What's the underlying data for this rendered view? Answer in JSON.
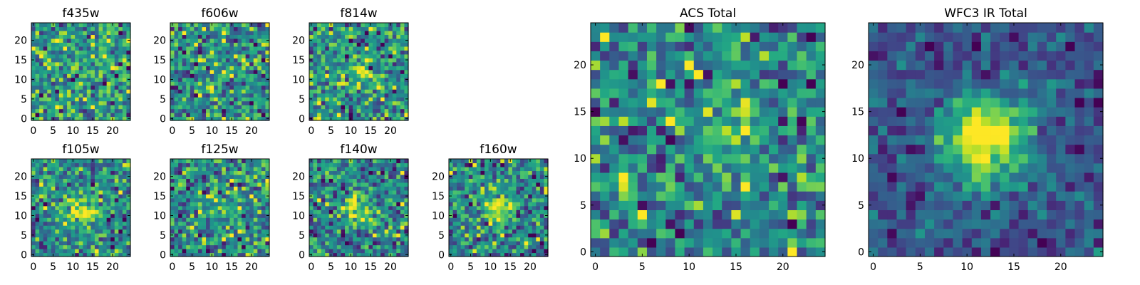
{
  "chart_data": [
    {
      "type": "heatmap",
      "title": "f435w",
      "colormap": "viridis",
      "grid_size": [
        25,
        25
      ],
      "xlim": [
        -0.5,
        24.5
      ],
      "ylim": [
        -0.5,
        24.5
      ],
      "xticks": [
        0,
        5,
        10,
        15,
        20
      ],
      "yticks": [
        0,
        5,
        10,
        15,
        20
      ],
      "xtick_labels": [
        "0",
        "5",
        "10",
        "15",
        "20"
      ],
      "ytick_labels": [
        "0",
        "5",
        "10",
        "15",
        "20"
      ],
      "source": {
        "center": [
          12,
          12
        ],
        "width": 3.0,
        "amplitude": 0.0
      },
      "noise_level": 1.0,
      "seed": 435
    },
    {
      "type": "heatmap",
      "title": "f606w",
      "colormap": "viridis",
      "grid_size": [
        25,
        25
      ],
      "xlim": [
        -0.5,
        24.5
      ],
      "ylim": [
        -0.5,
        24.5
      ],
      "xticks": [
        0,
        5,
        10,
        15,
        20
      ],
      "yticks": [
        0,
        5,
        10,
        15,
        20
      ],
      "xtick_labels": [
        "0",
        "5",
        "10",
        "15",
        "20"
      ],
      "ytick_labels": [
        "0",
        "5",
        "10",
        "15",
        "20"
      ],
      "source": {
        "center": [
          12,
          12
        ],
        "width": 3.0,
        "amplitude": 0.1
      },
      "noise_level": 1.0,
      "seed": 606
    },
    {
      "type": "heatmap",
      "title": "f814w",
      "colormap": "viridis",
      "grid_size": [
        25,
        25
      ],
      "xlim": [
        -0.5,
        24.5
      ],
      "ylim": [
        -0.5,
        24.5
      ],
      "xticks": [
        0,
        5,
        10,
        15,
        20
      ],
      "yticks": [
        0,
        5,
        10,
        15,
        20
      ],
      "xtick_labels": [
        "0",
        "5",
        "10",
        "15",
        "20"
      ],
      "ytick_labels": [
        "0",
        "5",
        "10",
        "15",
        "20"
      ],
      "source": {
        "center": [
          12,
          12
        ],
        "width": 3.0,
        "amplitude": 0.55
      },
      "noise_level": 1.0,
      "seed": 814
    },
    {
      "type": "heatmap",
      "title": "f105w",
      "colormap": "viridis",
      "grid_size": [
        25,
        25
      ],
      "xlim": [
        -0.5,
        24.5
      ],
      "ylim": [
        -0.5,
        24.5
      ],
      "xticks": [
        0,
        5,
        10,
        15,
        20
      ],
      "yticks": [
        0,
        5,
        10,
        15,
        20
      ],
      "xtick_labels": [
        "0",
        "5",
        "10",
        "15",
        "20"
      ],
      "ytick_labels": [
        "0",
        "5",
        "10",
        "15",
        "20"
      ],
      "source": {
        "center": [
          12,
          11
        ],
        "width": 3.0,
        "amplitude": 0.9
      },
      "noise_level": 0.9,
      "seed": 105
    },
    {
      "type": "heatmap",
      "title": "f125w",
      "colormap": "viridis",
      "grid_size": [
        25,
        25
      ],
      "xlim": [
        -0.5,
        24.5
      ],
      "ylim": [
        -0.5,
        24.5
      ],
      "xticks": [
        0,
        5,
        10,
        15,
        20
      ],
      "yticks": [
        0,
        5,
        10,
        15,
        20
      ],
      "xtick_labels": [
        "0",
        "5",
        "10",
        "15",
        "20"
      ],
      "ytick_labels": [
        "0",
        "5",
        "10",
        "15",
        "20"
      ],
      "source": {
        "center": [
          12,
          11
        ],
        "width": 3.0,
        "amplitude": 0.5
      },
      "noise_level": 1.0,
      "seed": 125
    },
    {
      "type": "heatmap",
      "title": "f140w",
      "colormap": "viridis",
      "grid_size": [
        25,
        25
      ],
      "xlim": [
        -0.5,
        24.5
      ],
      "ylim": [
        -0.5,
        24.5
      ],
      "xticks": [
        0,
        5,
        10,
        15,
        20
      ],
      "yticks": [
        0,
        5,
        10,
        15,
        20
      ],
      "xtick_labels": [
        "0",
        "5",
        "10",
        "15",
        "20"
      ],
      "ytick_labels": [
        "0",
        "5",
        "10",
        "15",
        "20"
      ],
      "source": {
        "center": [
          12,
          12
        ],
        "width": 3.0,
        "amplitude": 0.9
      },
      "noise_level": 0.9,
      "seed": 140
    },
    {
      "type": "heatmap",
      "title": "f160w",
      "colormap": "viridis",
      "grid_size": [
        25,
        25
      ],
      "xlim": [
        -0.5,
        24.5
      ],
      "ylim": [
        -0.5,
        24.5
      ],
      "xticks": [
        0,
        5,
        10,
        15,
        20
      ],
      "yticks": [
        0,
        5,
        10,
        15,
        20
      ],
      "xtick_labels": [
        "0",
        "5",
        "10",
        "15",
        "20"
      ],
      "ytick_labels": [
        "0",
        "5",
        "10",
        "15",
        "20"
      ],
      "source": {
        "center": [
          12,
          12
        ],
        "width": 3.0,
        "amplitude": 1.1
      },
      "noise_level": 0.9,
      "seed": 160
    },
    {
      "type": "heatmap",
      "title": "ACS Total",
      "colormap": "viridis",
      "grid_size": [
        25,
        25
      ],
      "xlim": [
        -0.5,
        24.5
      ],
      "ylim": [
        -0.5,
        24.5
      ],
      "xticks": [
        0,
        5,
        10,
        15,
        20
      ],
      "yticks": [
        0,
        5,
        10,
        15,
        20
      ],
      "xtick_labels": [
        "0",
        "5",
        "10",
        "15",
        "20"
      ],
      "ytick_labels": [
        "0",
        "5",
        "10",
        "15",
        "20"
      ],
      "source": {
        "center": [
          12,
          12
        ],
        "width": 3.0,
        "amplitude": 0.35
      },
      "noise_level": 1.0,
      "seed": 1001
    },
    {
      "type": "heatmap",
      "title": "WFC3 IR Total",
      "colormap": "viridis",
      "grid_size": [
        25,
        25
      ],
      "xlim": [
        -0.5,
        24.5
      ],
      "ylim": [
        -0.5,
        24.5
      ],
      "xticks": [
        0,
        5,
        10,
        15,
        20
      ],
      "yticks": [
        0,
        5,
        10,
        15,
        20
      ],
      "xtick_labels": [
        "0",
        "5",
        "10",
        "15",
        "20"
      ],
      "ytick_labels": [
        "0",
        "5",
        "10",
        "15",
        "20"
      ],
      "source": {
        "center": [
          12,
          12
        ],
        "width": 3.2,
        "amplitude": 2.6
      },
      "noise_level": 0.7,
      "seed": 2002
    }
  ]
}
